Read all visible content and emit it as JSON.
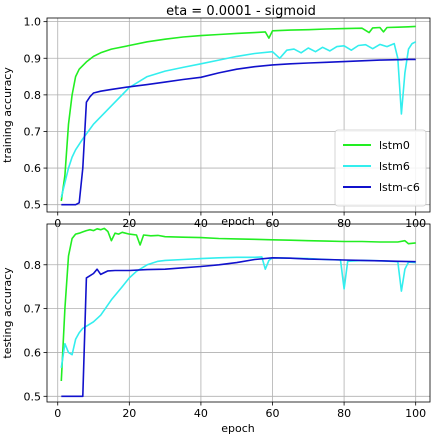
{
  "figure": {
    "title": "eta = 0.0001 - sigmoid"
  },
  "chart_data": [
    {
      "type": "line",
      "xlabel": "epoch",
      "ylabel": "training accuracy",
      "xlim": [
        -3,
        104
      ],
      "ylim": [
        0.48,
        1.01
      ],
      "xticks": [
        "0",
        "20",
        "40",
        "60",
        "80",
        "100"
      ],
      "yticks": [
        "0.5",
        "0.6",
        "0.7",
        "0.8",
        "0.9",
        "1.0"
      ],
      "grid": true,
      "legend": "lower-right",
      "series": [
        {
          "name": "lstm0",
          "color": "#22ee22",
          "points": [
            [
              1,
              0.51
            ],
            [
              2,
              0.58
            ],
            [
              3,
              0.72
            ],
            [
              4,
              0.8
            ],
            [
              5,
              0.85
            ],
            [
              6,
              0.87
            ],
            [
              7,
              0.88
            ],
            [
              8,
              0.89
            ],
            [
              10,
              0.905
            ],
            [
              12,
              0.915
            ],
            [
              15,
              0.925
            ],
            [
              20,
              0.935
            ],
            [
              25,
              0.945
            ],
            [
              30,
              0.952
            ],
            [
              35,
              0.958
            ],
            [
              40,
              0.962
            ],
            [
              45,
              0.965
            ],
            [
              50,
              0.968
            ],
            [
              55,
              0.97
            ],
            [
              58,
              0.972
            ],
            [
              59,
              0.955
            ],
            [
              60,
              0.975
            ],
            [
              65,
              0.977
            ],
            [
              70,
              0.978
            ],
            [
              75,
              0.98
            ],
            [
              80,
              0.981
            ],
            [
              85,
              0.982
            ],
            [
              87,
              0.97
            ],
            [
              88,
              0.983
            ],
            [
              90,
              0.984
            ],
            [
              91,
              0.972
            ],
            [
              92,
              0.984
            ],
            [
              95,
              0.985
            ],
            [
              98,
              0.986
            ],
            [
              100,
              0.987
            ]
          ]
        },
        {
          "name": "lstm6",
          "color": "#33eeee",
          "points": [
            [
              1,
              0.52
            ],
            [
              2,
              0.56
            ],
            [
              3,
              0.6
            ],
            [
              4,
              0.63
            ],
            [
              5,
              0.65
            ],
            [
              7,
              0.68
            ],
            [
              10,
              0.72
            ],
            [
              15,
              0.77
            ],
            [
              20,
              0.82
            ],
            [
              25,
              0.85
            ],
            [
              30,
              0.865
            ],
            [
              35,
              0.875
            ],
            [
              40,
              0.885
            ],
            [
              45,
              0.895
            ],
            [
              50,
              0.905
            ],
            [
              55,
              0.913
            ],
            [
              60,
              0.918
            ],
            [
              62,
              0.9
            ],
            [
              64,
              0.922
            ],
            [
              66,
              0.925
            ],
            [
              68,
              0.915
            ],
            [
              70,
              0.928
            ],
            [
              72,
              0.918
            ],
            [
              74,
              0.93
            ],
            [
              76,
              0.92
            ],
            [
              78,
              0.932
            ],
            [
              80,
              0.934
            ],
            [
              82,
              0.922
            ],
            [
              84,
              0.935
            ],
            [
              86,
              0.937
            ],
            [
              88,
              0.926
            ],
            [
              90,
              0.938
            ],
            [
              92,
              0.932
            ],
            [
              94,
              0.94
            ],
            [
              95,
              0.9
            ],
            [
              96,
              0.748
            ],
            [
              97,
              0.86
            ],
            [
              98,
              0.925
            ],
            [
              99,
              0.94
            ],
            [
              100,
              0.945
            ]
          ]
        },
        {
          "name": "lstm-c6",
          "color": "#1111cc",
          "points": [
            [
              1,
              0.5
            ],
            [
              2,
              0.5
            ],
            [
              3,
              0.5
            ],
            [
              4,
              0.5
            ],
            [
              5,
              0.5
            ],
            [
              6,
              0.505
            ],
            [
              7,
              0.6
            ],
            [
              8,
              0.78
            ],
            [
              9,
              0.795
            ],
            [
              10,
              0.805
            ],
            [
              12,
              0.81
            ],
            [
              15,
              0.815
            ],
            [
              20,
              0.822
            ],
            [
              25,
              0.828
            ],
            [
              30,
              0.835
            ],
            [
              35,
              0.842
            ],
            [
              40,
              0.848
            ],
            [
              45,
              0.86
            ],
            [
              50,
              0.87
            ],
            [
              55,
              0.877
            ],
            [
              60,
              0.882
            ],
            [
              65,
              0.885
            ],
            [
              70,
              0.887
            ],
            [
              75,
              0.889
            ],
            [
              80,
              0.891
            ],
            [
              85,
              0.893
            ],
            [
              90,
              0.895
            ],
            [
              95,
              0.896
            ],
            [
              96,
              0.896
            ],
            [
              97,
              0.897
            ],
            [
              100,
              0.897
            ]
          ]
        }
      ]
    },
    {
      "type": "line",
      "xlabel": "epoch",
      "ylabel": "testing accuracy",
      "xlim": [
        -3,
        104
      ],
      "ylim": [
        0.487,
        0.893
      ],
      "xticks": [
        "0",
        "20",
        "40",
        "60",
        "80",
        "100"
      ],
      "yticks": [
        "0.5",
        "0.6",
        "0.7",
        "0.8"
      ],
      "grid": true,
      "legend": "none",
      "series": [
        {
          "name": "lstm0",
          "color": "#22ee22",
          "points": [
            [
              1,
              0.535
            ],
            [
              2,
              0.7
            ],
            [
              3,
              0.82
            ],
            [
              4,
              0.86
            ],
            [
              5,
              0.87
            ],
            [
              6,
              0.872
            ],
            [
              7,
              0.875
            ],
            [
              8,
              0.878
            ],
            [
              9,
              0.88
            ],
            [
              10,
              0.878
            ],
            [
              11,
              0.882
            ],
            [
              12,
              0.88
            ],
            [
              13,
              0.883
            ],
            [
              14,
              0.876
            ],
            [
              15,
              0.855
            ],
            [
              16,
              0.872
            ],
            [
              17,
              0.87
            ],
            [
              18,
              0.874
            ],
            [
              20,
              0.87
            ],
            [
              22,
              0.868
            ],
            [
              23,
              0.845
            ],
            [
              24,
              0.868
            ],
            [
              26,
              0.866
            ],
            [
              28,
              0.867
            ],
            [
              30,
              0.864
            ],
            [
              35,
              0.863
            ],
            [
              40,
              0.862
            ],
            [
              45,
              0.86
            ],
            [
              50,
              0.859
            ],
            [
              55,
              0.858
            ],
            [
              60,
              0.857
            ],
            [
              65,
              0.856
            ],
            [
              70,
              0.855
            ],
            [
              75,
              0.854
            ],
            [
              80,
              0.853
            ],
            [
              85,
              0.853
            ],
            [
              90,
              0.852
            ],
            [
              95,
              0.852
            ],
            [
              97,
              0.855
            ],
            [
              98,
              0.848
            ],
            [
              100,
              0.85
            ]
          ]
        },
        {
          "name": "lstm6",
          "color": "#33eeee",
          "points": [
            [
              1,
              0.565
            ],
            [
              2,
              0.62
            ],
            [
              3,
              0.6
            ],
            [
              4,
              0.595
            ],
            [
              5,
              0.63
            ],
            [
              6,
              0.645
            ],
            [
              7,
              0.655
            ],
            [
              8,
              0.66
            ],
            [
              10,
              0.67
            ],
            [
              12,
              0.685
            ],
            [
              15,
              0.72
            ],
            [
              18,
              0.75
            ],
            [
              20,
              0.77
            ],
            [
              22,
              0.785
            ],
            [
              25,
              0.8
            ],
            [
              28,
              0.808
            ],
            [
              30,
              0.81
            ],
            [
              35,
              0.812
            ],
            [
              40,
              0.814
            ],
            [
              45,
              0.816
            ],
            [
              50,
              0.817
            ],
            [
              55,
              0.817
            ],
            [
              57,
              0.818
            ],
            [
              58,
              0.79
            ],
            [
              59,
              0.81
            ],
            [
              60,
              0.816
            ],
            [
              65,
              0.815
            ],
            [
              70,
              0.814
            ],
            [
              75,
              0.812
            ],
            [
              79,
              0.811
            ],
            [
              80,
              0.745
            ],
            [
              81,
              0.808
            ],
            [
              85,
              0.81
            ],
            [
              90,
              0.809
            ],
            [
              95,
              0.807
            ],
            [
              96,
              0.74
            ],
            [
              97,
              0.79
            ],
            [
              98,
              0.806
            ],
            [
              100,
              0.805
            ]
          ]
        },
        {
          "name": "lstm-c6",
          "color": "#1111cc",
          "points": [
            [
              1,
              0.5
            ],
            [
              2,
              0.5
            ],
            [
              3,
              0.5
            ],
            [
              4,
              0.5
            ],
            [
              5,
              0.5
            ],
            [
              6,
              0.5
            ],
            [
              7,
              0.5
            ],
            [
              8,
              0.77
            ],
            [
              9,
              0.775
            ],
            [
              10,
              0.78
            ],
            [
              11,
              0.79
            ],
            [
              12,
              0.778
            ],
            [
              14,
              0.786
            ],
            [
              16,
              0.787
            ],
            [
              20,
              0.787
            ],
            [
              25,
              0.789
            ],
            [
              30,
              0.79
            ],
            [
              35,
              0.793
            ],
            [
              40,
              0.796
            ],
            [
              45,
              0.8
            ],
            [
              50,
              0.805
            ],
            [
              55,
              0.812
            ],
            [
              60,
              0.816
            ],
            [
              65,
              0.815
            ],
            [
              70,
              0.813
            ],
            [
              75,
              0.812
            ],
            [
              80,
              0.811
            ],
            [
              85,
              0.81
            ],
            [
              90,
              0.809
            ],
            [
              95,
              0.808
            ],
            [
              100,
              0.807
            ]
          ]
        }
      ]
    }
  ]
}
